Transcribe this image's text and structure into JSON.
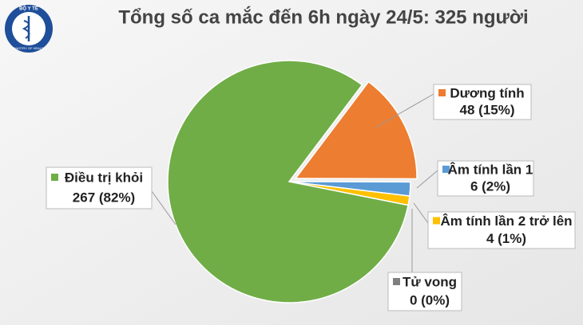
{
  "logo": {
    "top": "BỘ Y TẾ",
    "bottom": "MINISTRY OF HEALTH"
  },
  "chart_data": {
    "type": "pie",
    "title": "Tổng số ca mắc đến 6h ngày 24/5: 325 người",
    "categories": [
      "Dương tính",
      "Âm tính lần 1",
      "Âm tính lần 2 trở lên",
      "Tử vong",
      "Điều trị khỏi"
    ],
    "values": [
      48,
      6,
      4,
      0,
      267
    ],
    "value_labels": [
      "48 (15%)",
      "6 (2%)",
      "4 (1%)",
      "0 (0%)",
      "267 (82%)"
    ],
    "colors": [
      "#ed7d31",
      "#5b9bd5",
      "#ffc000",
      "#7f7f7f",
      "#70ad47"
    ]
  }
}
